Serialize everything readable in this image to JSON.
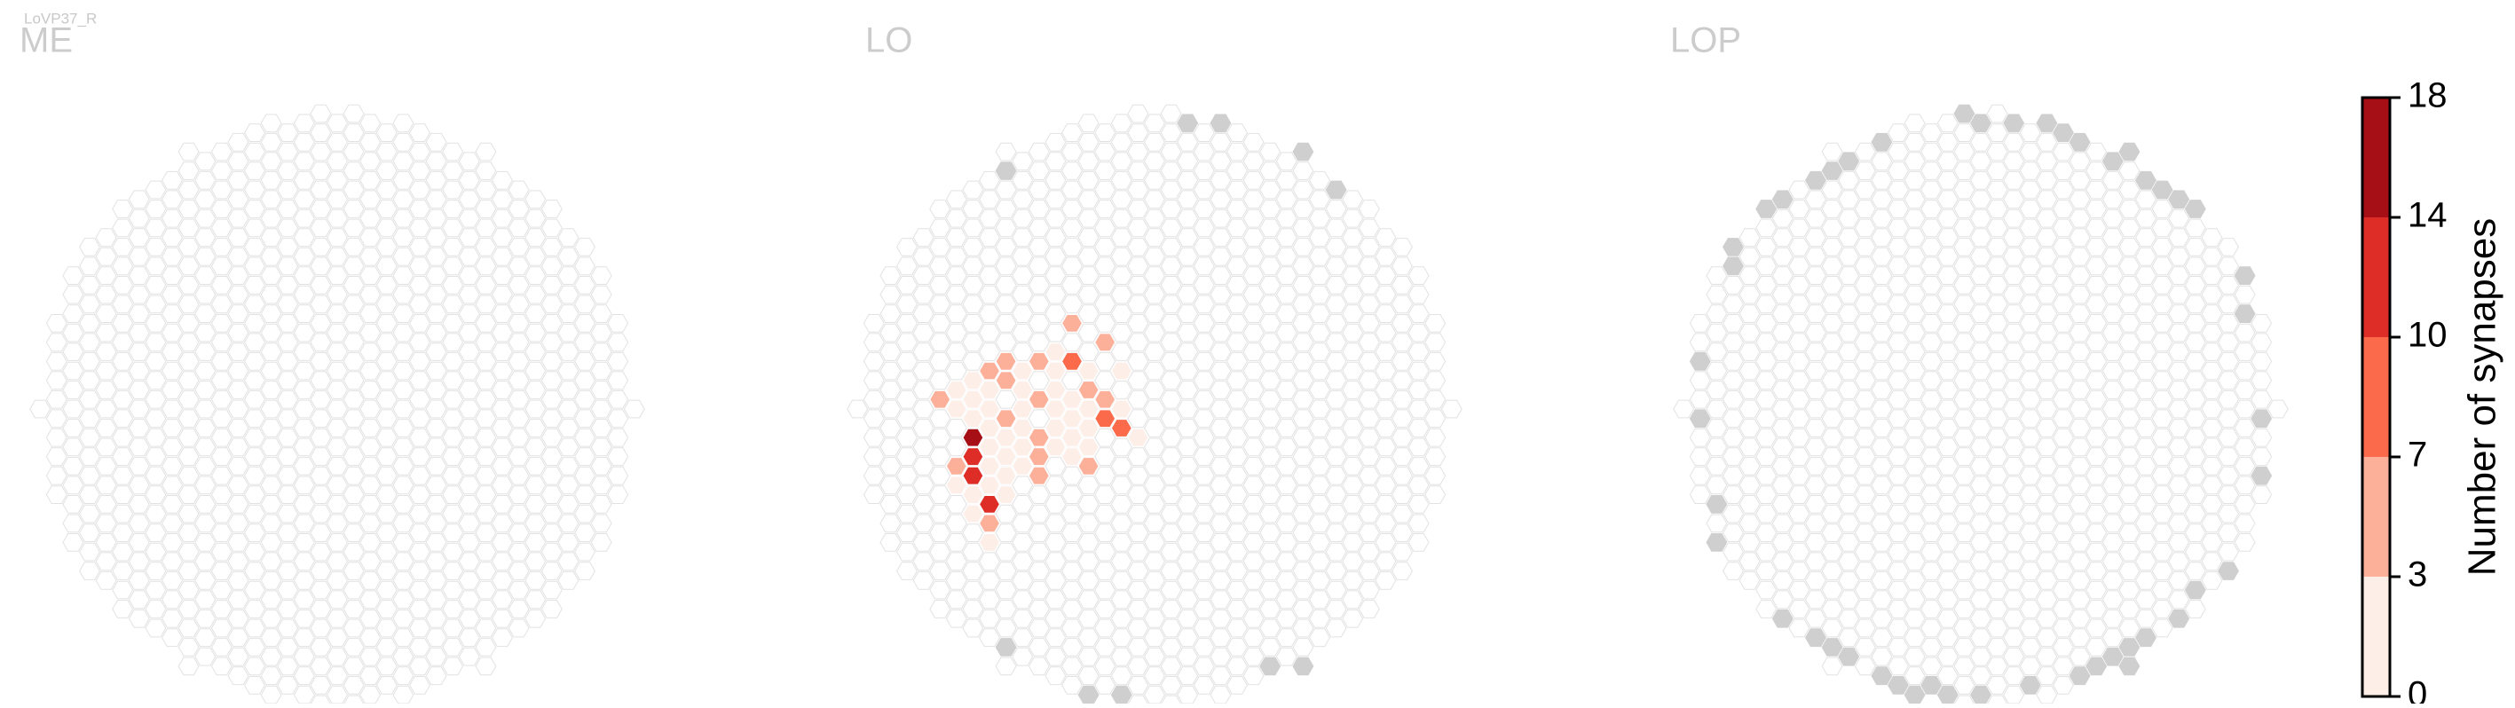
{
  "chart_data": {
    "type": "hexmap",
    "title": "LoVP37_R",
    "panels": [
      {
        "title": "ME",
        "cells": []
      },
      {
        "title": "LO",
        "cells": [
          {
            "col": -5,
            "row": -5,
            "value": 5
          },
          {
            "col": -3,
            "row": -4,
            "value": 4
          },
          {
            "col": -5,
            "row": -3,
            "value": 9
          },
          {
            "col": -7,
            "row": -3,
            "value": 5
          },
          {
            "col": -9,
            "row": -3,
            "value": 5
          },
          {
            "col": -10,
            "row": -2,
            "value": 4
          },
          {
            "col": -9,
            "row": -2,
            "value": 5
          },
          {
            "col": -7,
            "row": -1,
            "value": 5
          },
          {
            "col": -5,
            "row": -1,
            "value": 2
          },
          {
            "col": -4,
            "row": -1,
            "value": 5
          },
          {
            "col": -3,
            "row": -1,
            "value": 4
          },
          {
            "col": -13,
            "row": -1,
            "value": 4
          },
          {
            "col": -11,
            "row": -2,
            "value": 2
          },
          {
            "col": -9,
            "row": 0,
            "value": 5
          },
          {
            "col": -3,
            "row": 0,
            "value": 8
          },
          {
            "col": -2,
            "row": 1,
            "value": 9
          },
          {
            "col": -11,
            "row": 1,
            "value": 16
          },
          {
            "col": -11,
            "row": 2,
            "value": 12
          },
          {
            "col": -11,
            "row": 3,
            "value": 12
          },
          {
            "col": -12,
            "row": 3,
            "value": 6
          },
          {
            "col": -7,
            "row": 1,
            "value": 5
          },
          {
            "col": -7,
            "row": 2,
            "value": 5
          },
          {
            "col": -7,
            "row": 3,
            "value": 3
          },
          {
            "col": -4,
            "row": 3,
            "value": 5
          },
          {
            "col": -10,
            "row": 5,
            "value": 10
          },
          {
            "col": -10,
            "row": 6,
            "value": 5
          },
          {
            "col": -11,
            "row": 4,
            "value": 2
          },
          {
            "col": -8,
            "row": -2,
            "value": 1
          },
          {
            "col": -8,
            "row": -1,
            "value": 1
          },
          {
            "col": -8,
            "row": 0,
            "value": 1
          },
          {
            "col": -8,
            "row": 1,
            "value": 1
          },
          {
            "col": -8,
            "row": 2,
            "value": 1
          },
          {
            "col": -8,
            "row": 3,
            "value": 1
          },
          {
            "col": -6,
            "row": -3,
            "value": 1
          },
          {
            "col": -6,
            "row": -2,
            "value": 1
          },
          {
            "col": -6,
            "row": -1,
            "value": 1
          },
          {
            "col": -6,
            "row": 0,
            "value": 1
          },
          {
            "col": -6,
            "row": 1,
            "value": 1
          },
          {
            "col": -6,
            "row": 2,
            "value": 1
          },
          {
            "col": -5,
            "row": 0,
            "value": 1
          },
          {
            "col": -5,
            "row": 1,
            "value": 1
          },
          {
            "col": -5,
            "row": 2,
            "value": 1
          },
          {
            "col": -4,
            "row": -2,
            "value": 1
          },
          {
            "col": -4,
            "row": 0,
            "value": 1
          },
          {
            "col": -4,
            "row": 1,
            "value": 1
          },
          {
            "col": -4,
            "row": 2,
            "value": 1
          },
          {
            "col": -2,
            "row": -2,
            "value": 1
          },
          {
            "col": -2,
            "row": 0,
            "value": 1
          },
          {
            "col": -1,
            "row": 1,
            "value": 1
          },
          {
            "col": -9,
            "row": 1,
            "value": 1
          },
          {
            "col": -9,
            "row": 2,
            "value": 1
          },
          {
            "col": -9,
            "row": 3,
            "value": 1
          },
          {
            "col": -9,
            "row": 4,
            "value": 1
          },
          {
            "col": -10,
            "row": -1,
            "value": 1
          },
          {
            "col": -10,
            "row": 0,
            "value": 1
          },
          {
            "col": -10,
            "row": 1,
            "value": 1
          },
          {
            "col": -10,
            "row": 2,
            "value": 1
          },
          {
            "col": -10,
            "row": 3,
            "value": 1
          },
          {
            "col": -10,
            "row": 4,
            "value": 1
          },
          {
            "col": -12,
            "row": 4,
            "value": 1
          },
          {
            "col": -11,
            "row": 5,
            "value": 1
          },
          {
            "col": -10,
            "row": 7,
            "value": 1
          },
          {
            "col": -12,
            "row": -1,
            "value": 1
          },
          {
            "col": -11,
            "row": -1,
            "value": 1
          },
          {
            "col": -11,
            "row": 0,
            "value": 1
          },
          {
            "col": -12,
            "row": 0,
            "value": 1
          }
        ]
      },
      {
        "title": "LOP",
        "cells": []
      }
    ],
    "colorbar": {
      "label": "Number of synapses",
      "ticks": [
        0,
        3,
        7,
        10,
        14,
        18
      ],
      "colors": [
        "#fdeee8",
        "#fcb09a",
        "#fb6a4a",
        "#de2d26",
        "#a50f15"
      ]
    }
  }
}
